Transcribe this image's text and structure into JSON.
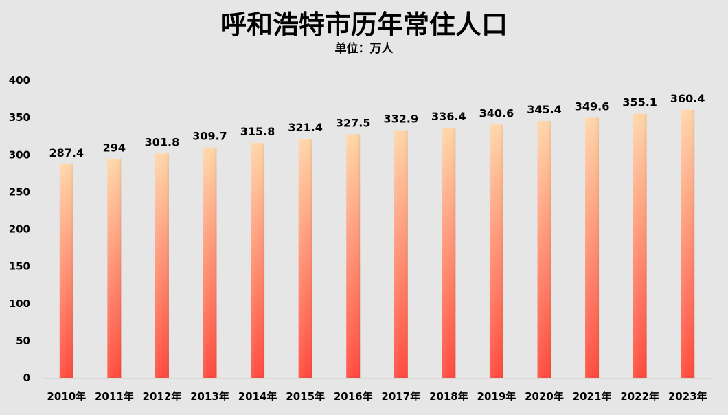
{
  "chart_data": {
    "type": "bar",
    "title": "呼和浩特市历年常住人口",
    "subtitle": "单位：万人",
    "categories": [
      "2010年",
      "2011年",
      "2012年",
      "2013年",
      "2014年",
      "2015年",
      "2016年",
      "2017年",
      "2018年",
      "2019年",
      "2020年",
      "2021年",
      "2022年",
      "2023年"
    ],
    "values": [
      287.4,
      294,
      301.8,
      309.7,
      315.8,
      321.4,
      327.5,
      332.9,
      336.4,
      340.6,
      345.4,
      349.6,
      355.1,
      360.4
    ],
    "value_labels": [
      "287.4",
      "294",
      "301.8",
      "309.7",
      "315.8",
      "321.4",
      "327.5",
      "332.9",
      "336.4",
      "340.6",
      "345.4",
      "349.6",
      "355.1",
      "360.4"
    ],
    "ylim": [
      0,
      400
    ],
    "yticks": [
      0,
      50,
      100,
      150,
      200,
      250,
      300,
      350,
      400
    ],
    "ytick_labels": [
      "0",
      "50",
      "100",
      "150",
      "200",
      "250",
      "300",
      "350",
      "400"
    ],
    "grid": false,
    "legend": "none",
    "colors": {
      "background": "#e6e6e6",
      "bar_top": "#ffd6a8",
      "bar_bottom": "#ff4a3d",
      "axis_line": "#d9d9d9",
      "text": "#000000"
    }
  }
}
